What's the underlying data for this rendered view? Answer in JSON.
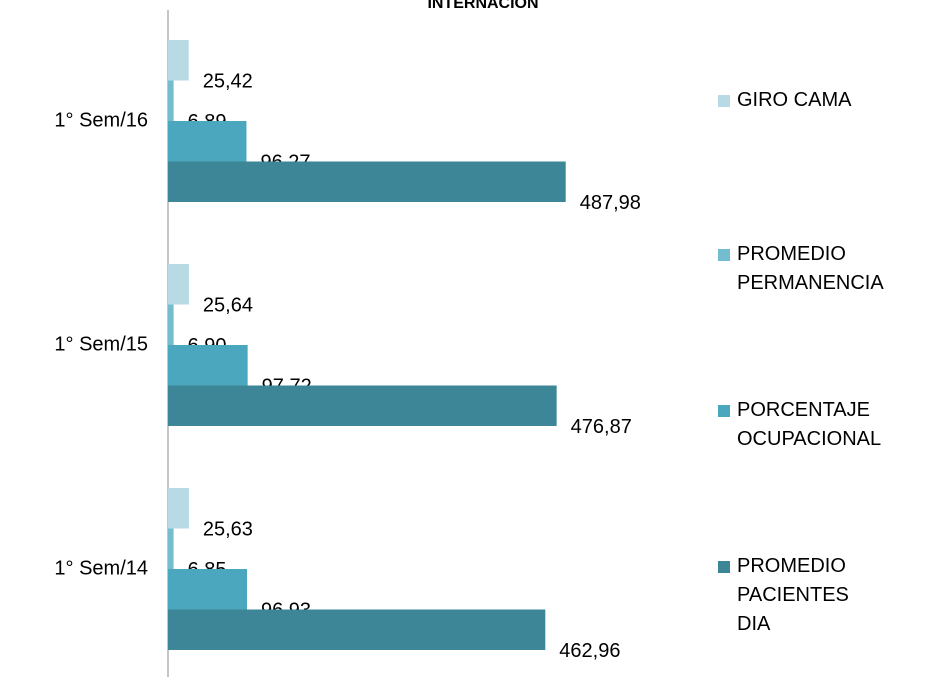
{
  "chart_data": {
    "type": "bar",
    "orientation": "horizontal",
    "title": "INTERNACION",
    "categories": [
      "1° Sem/16",
      "1° Sem/15",
      "1° Sem/14"
    ],
    "xlim": [
      0,
      600
    ],
    "series": [
      {
        "name": "GIRO CAMA",
        "color": "#b8dae4",
        "values": [
          25.42,
          25.64,
          25.63
        ],
        "value_labels": [
          "25,42",
          "25,64",
          "25,63"
        ]
      },
      {
        "name": "PROMEDIO PERMANENCIA",
        "color": "#74bccf",
        "values": [
          6.89,
          6.9,
          6.85
        ],
        "value_labels": [
          "6,89",
          "6,90",
          "6,85"
        ]
      },
      {
        "name": "PORCENTAJE OCUPACIONAL",
        "color": "#4aa7bd",
        "values": [
          96.27,
          97.72,
          96.93
        ],
        "value_labels": [
          "96,27",
          "97,72",
          "96,93"
        ]
      },
      {
        "name": "PROMEDIO PACIENTES DIA",
        "color": "#3c8698",
        "values": [
          487.98,
          476.87,
          462.96
        ],
        "value_labels": [
          "487,98",
          "476,87",
          "462,96"
        ]
      }
    ]
  }
}
